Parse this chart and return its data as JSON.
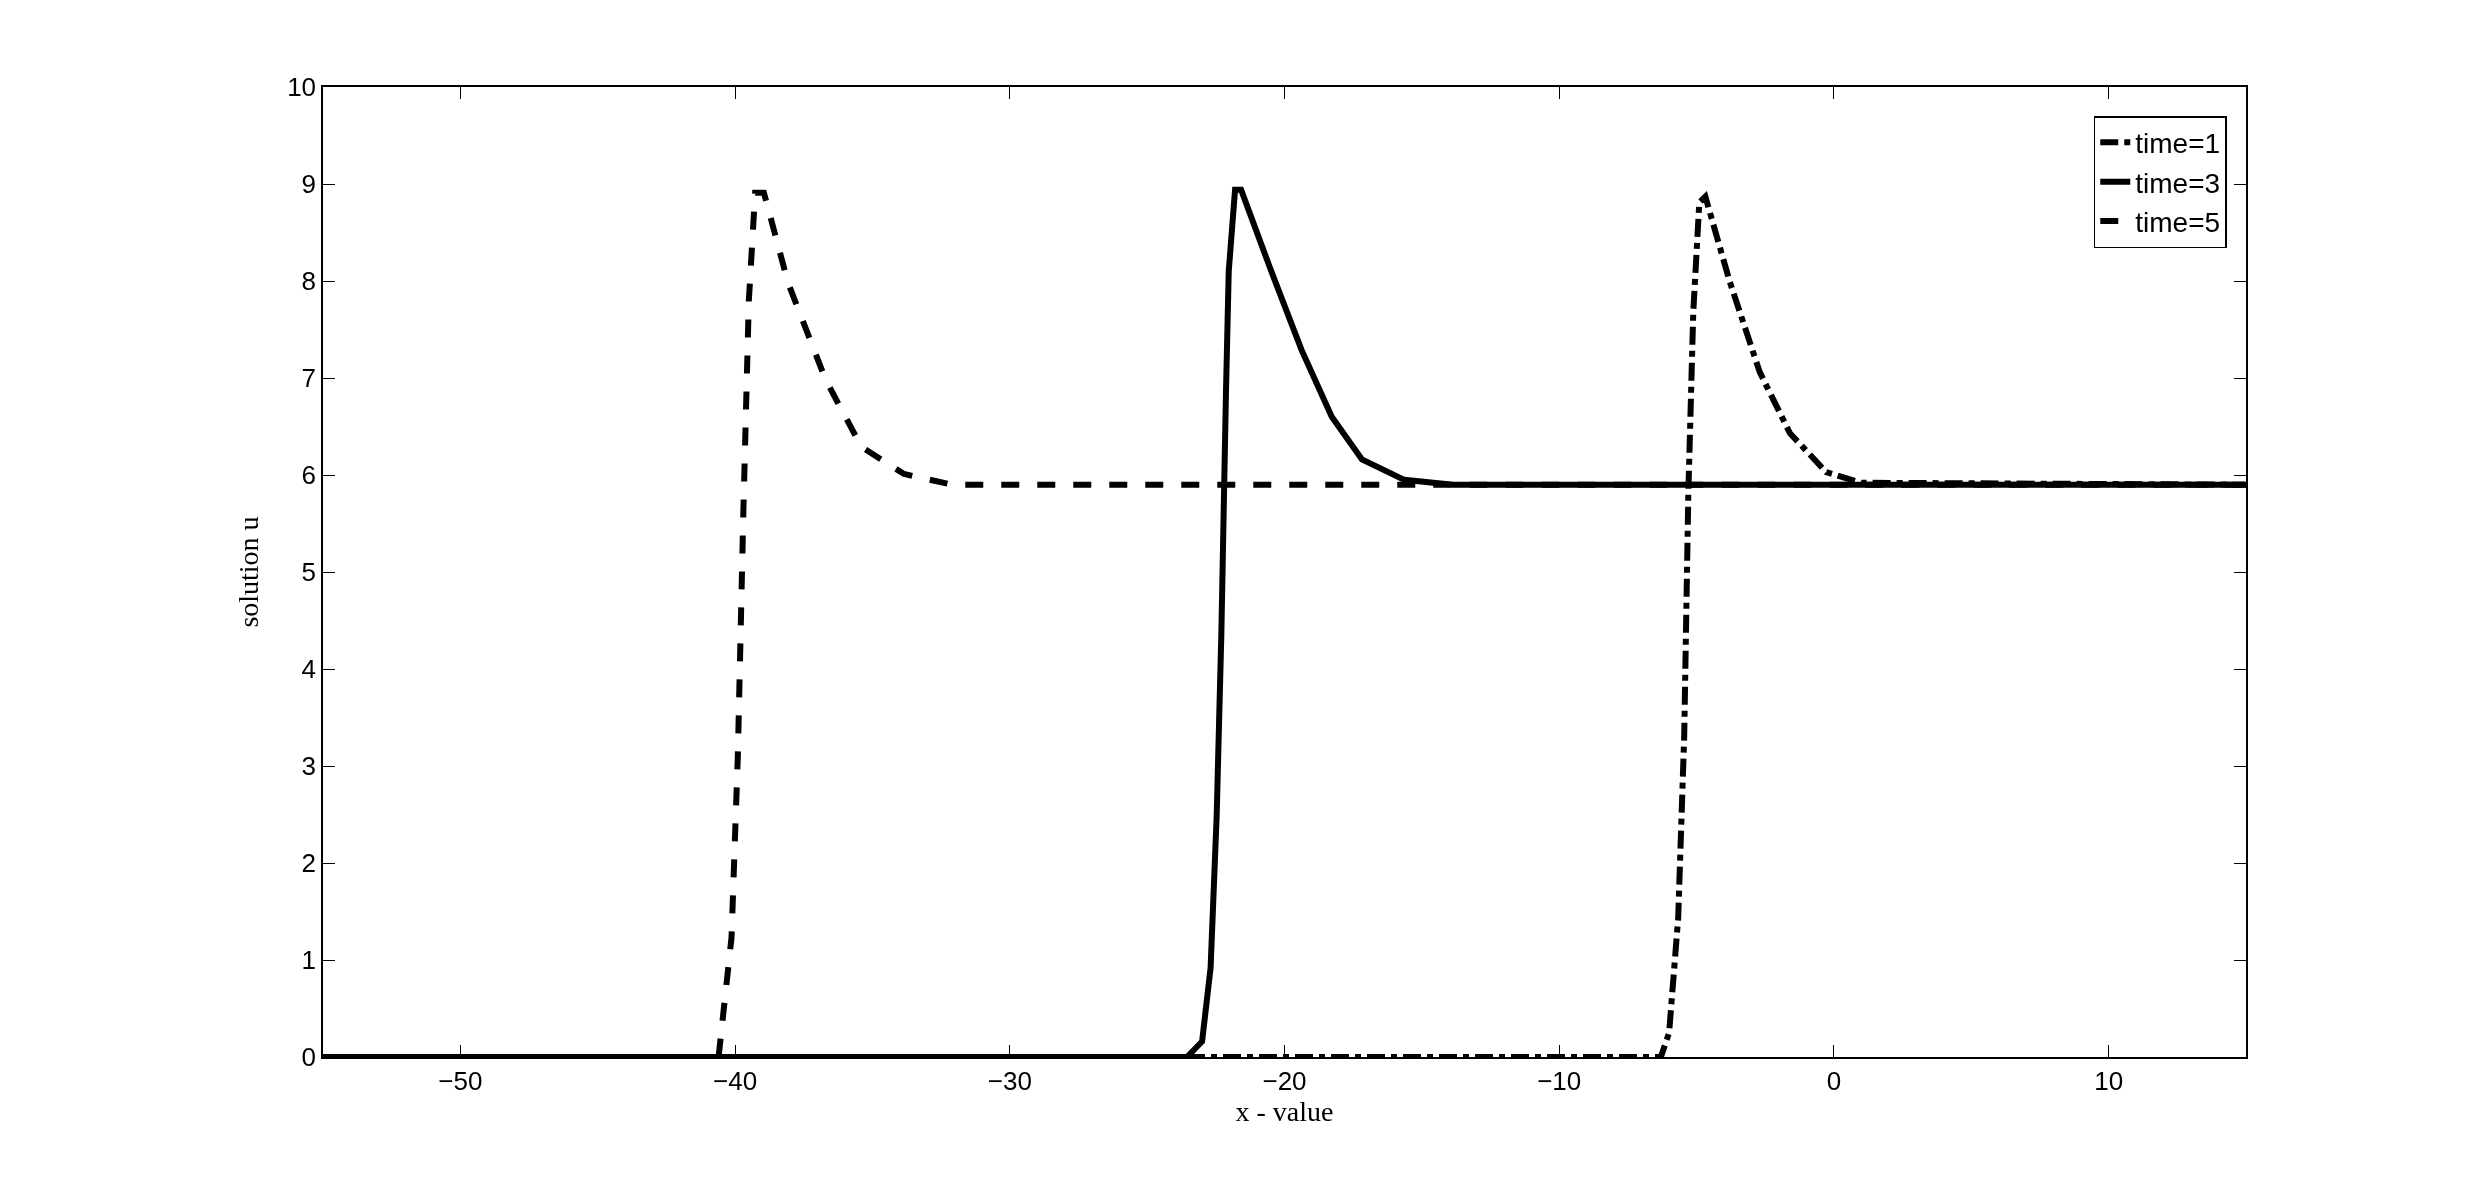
{
  "chart_data": {
    "type": "line",
    "xlabel": "x - value",
    "ylabel": "solution u",
    "xlim": [
      -55,
      15
    ],
    "xticks": [
      {
        "value": -50,
        "label": "−50"
      },
      {
        "value": -40,
        "label": "−40"
      },
      {
        "value": -30,
        "label": "−30"
      },
      {
        "value": -20,
        "label": "−20"
      },
      {
        "value": -10,
        "label": "−10"
      },
      0,
      10
    ],
    "ylim": [
      0,
      10
    ],
    "yticks": [
      0,
      1,
      2,
      3,
      4,
      5,
      6,
      7,
      8,
      9,
      10
    ],
    "grid": false,
    "legend": "top right",
    "marker": "none",
    "series": [
      {
        "name": "time=1",
        "color": "#000000",
        "line_style": "dashdot",
        "x": [
          -55,
          -6.3,
          -6.0,
          -5.67,
          -5.45,
          -5.3,
          -5.12,
          -4.9,
          -4.68,
          -3.8,
          -2.7,
          -1.6,
          -0.28,
          1.0,
          15
        ],
        "values": [
          0,
          0,
          0.25,
          1.43,
          3.31,
          5.81,
          7.68,
          8.81,
          8.87,
          8.0,
          7.06,
          6.43,
          6.03,
          5.92,
          5.9
        ]
      },
      {
        "name": "time=3",
        "color": "#000000",
        "line_style": "solid",
        "x": [
          -55,
          -23.55,
          -23.0,
          -22.69,
          -22.47,
          -22.3,
          -22.13,
          -22.03,
          -21.8,
          -21.58,
          -20.48,
          -19.38,
          -18.28,
          -17.18,
          -15.64,
          -13.87,
          15
        ],
        "values": [
          0,
          0,
          0.16,
          0.92,
          2.48,
          4.35,
          6.86,
          8.1,
          8.94,
          8.94,
          8.1,
          7.29,
          6.6,
          6.16,
          5.95,
          5.9,
          5.9
        ]
      },
      {
        "name": "time=5",
        "color": "#000000",
        "line_style": "dashed",
        "x": [
          -55,
          -40.6,
          -40.13,
          -39.9,
          -39.7,
          -39.5,
          -39.27,
          -38.95,
          -38.07,
          -36.7,
          -35.4,
          -33.85,
          -32.1,
          15
        ],
        "values": [
          0,
          0,
          1.23,
          3.1,
          5.6,
          7.79,
          8.91,
          8.91,
          7.98,
          6.98,
          6.29,
          6.01,
          5.9,
          5.9
        ]
      }
    ]
  }
}
